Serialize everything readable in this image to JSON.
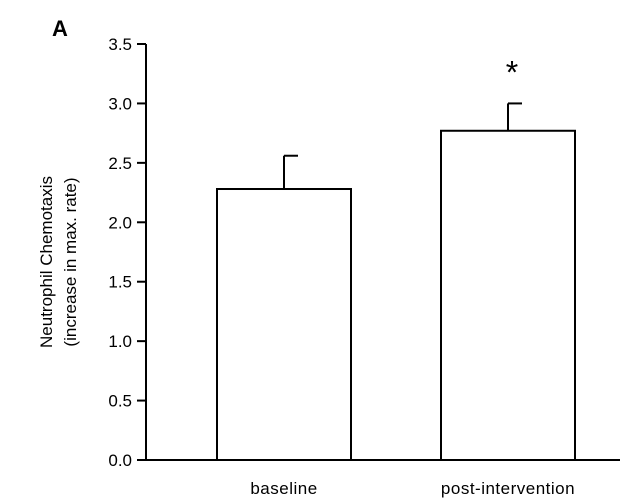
{
  "panel_label": "A",
  "chart_data": {
    "type": "bar",
    "categories": [
      "baseline",
      "post-intervention"
    ],
    "values": [
      2.28,
      2.77
    ],
    "error_upper": [
      2.56,
      3.0
    ],
    "ylabel_line1": "Neutrophil Chemotaxis",
    "ylabel_line2": "(increase in max. rate)",
    "ylim": [
      0,
      3.5
    ],
    "yticks": [
      "0.0",
      "0.5",
      "1.0",
      "1.5",
      "2.0",
      "2.5",
      "3.0",
      "3.5"
    ],
    "annotations": [
      {
        "category": "post-intervention",
        "text": "*"
      }
    ],
    "grid": false,
    "bar_fill": "#ffffff",
    "bar_stroke": "#000000"
  }
}
